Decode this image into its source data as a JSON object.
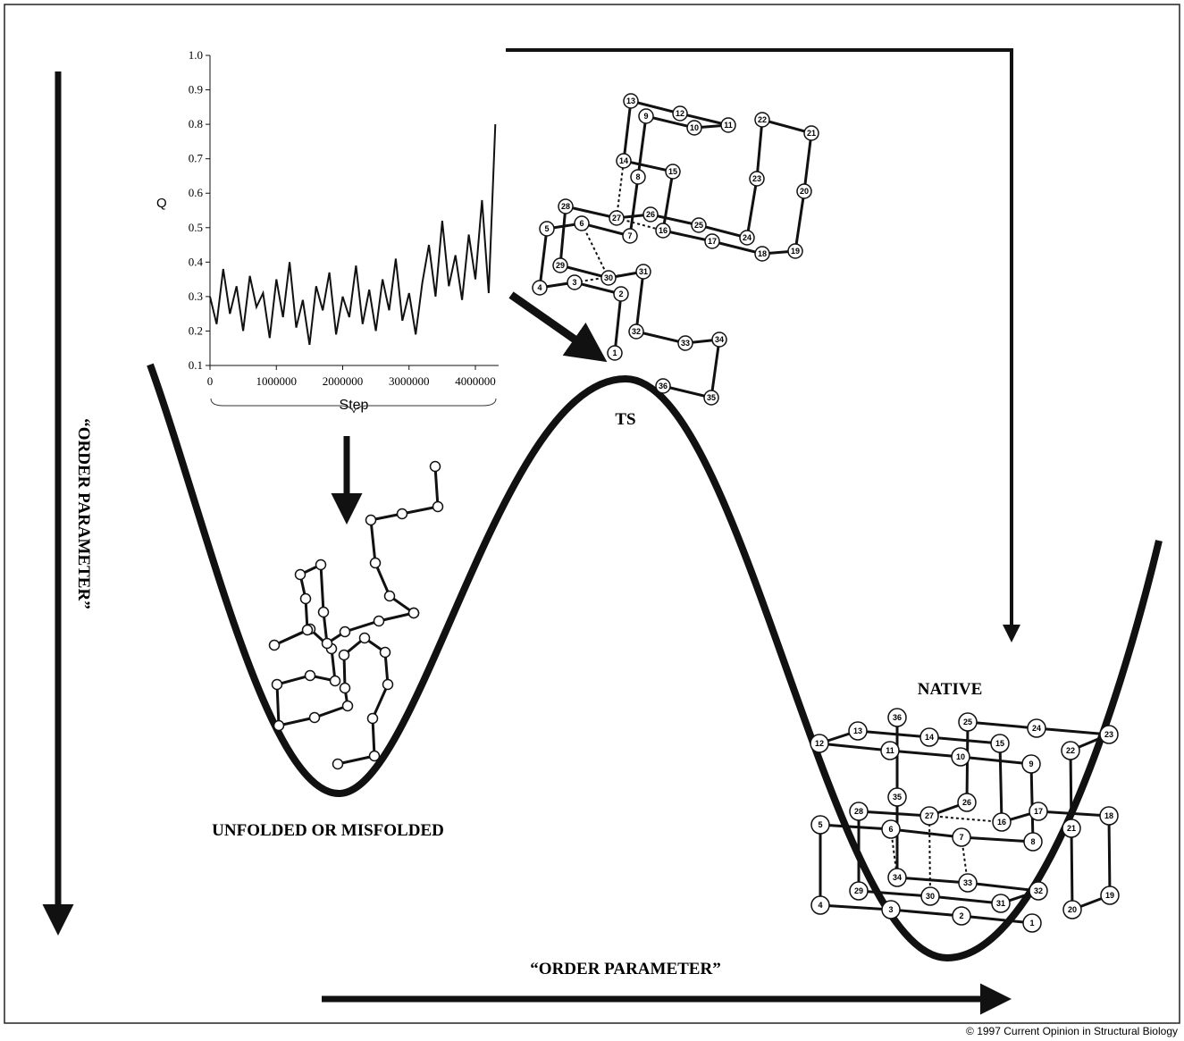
{
  "chart_data": {
    "type": "line",
    "xlabel": "Step",
    "ylabel": "Q",
    "x": [
      0,
      100000,
      200000,
      300000,
      400000,
      500000,
      600000,
      700000,
      800000,
      900000,
      1000000,
      1100000,
      1200000,
      1300000,
      1400000,
      1500000,
      1600000,
      1700000,
      1800000,
      1900000,
      2000000,
      2100000,
      2200000,
      2300000,
      2400000,
      2500000,
      2600000,
      2700000,
      2800000,
      2900000,
      3000000,
      3100000,
      3200000,
      3300000,
      3400000,
      3500000,
      3600000,
      3700000,
      3800000,
      3900000,
      4000000,
      4100000,
      4200000,
      4300000
    ],
    "values": [
      0.3,
      0.22,
      0.38,
      0.25,
      0.33,
      0.2,
      0.36,
      0.27,
      0.31,
      0.18,
      0.35,
      0.24,
      0.4,
      0.21,
      0.29,
      0.16,
      0.33,
      0.26,
      0.37,
      0.19,
      0.3,
      0.24,
      0.39,
      0.22,
      0.32,
      0.2,
      0.35,
      0.26,
      0.41,
      0.23,
      0.31,
      0.19,
      0.34,
      0.45,
      0.3,
      0.52,
      0.33,
      0.42,
      0.29,
      0.48,
      0.35,
      0.58,
      0.31,
      0.8
    ],
    "color": "#111111",
    "xlim": [
      0,
      4350000
    ],
    "ylim": [
      0.1,
      1.0
    ],
    "xticks": [
      0,
      1000000,
      2000000,
      3000000,
      4000000
    ],
    "yticks": [
      0.1,
      0.2,
      0.3,
      0.4,
      0.5,
      0.6,
      0.7,
      0.8,
      0.9,
      {
        "value": 1,
        "label": "1.0"
      }
    ]
  },
  "labels": {
    "y_axis": "“ORDER PARAMETER”",
    "x_axis": "“ORDER PARAMETER”",
    "ts": "TS",
    "native": "NATIVE",
    "unfolded": "UNFOLDED OR MISFOLDED",
    "copyright": "© 1997 Current Opinion in Structural Biology"
  },
  "ts_nodes": [
    "1",
    "2",
    "3",
    "4",
    "5",
    "6",
    "7",
    "8",
    "9",
    "10",
    "11",
    "12",
    "13",
    "14",
    "15",
    "16",
    "17",
    "18",
    "19",
    "20",
    "21",
    "22",
    "23",
    "24",
    "25",
    "26",
    "27",
    "28",
    "29",
    "30",
    "31",
    "32",
    "33",
    "34",
    "35",
    "36"
  ],
  "native_nodes": [
    "1",
    "2",
    "3",
    "4",
    "5",
    "6",
    "7",
    "8",
    "9",
    "10",
    "11",
    "12",
    "13",
    "14",
    "15",
    "16",
    "17",
    "18",
    "19",
    "20",
    "21",
    "22",
    "23",
    "24",
    "25",
    "26",
    "27",
    "28",
    "29",
    "30",
    "31",
    "32",
    "33",
    "34",
    "35",
    "36"
  ]
}
